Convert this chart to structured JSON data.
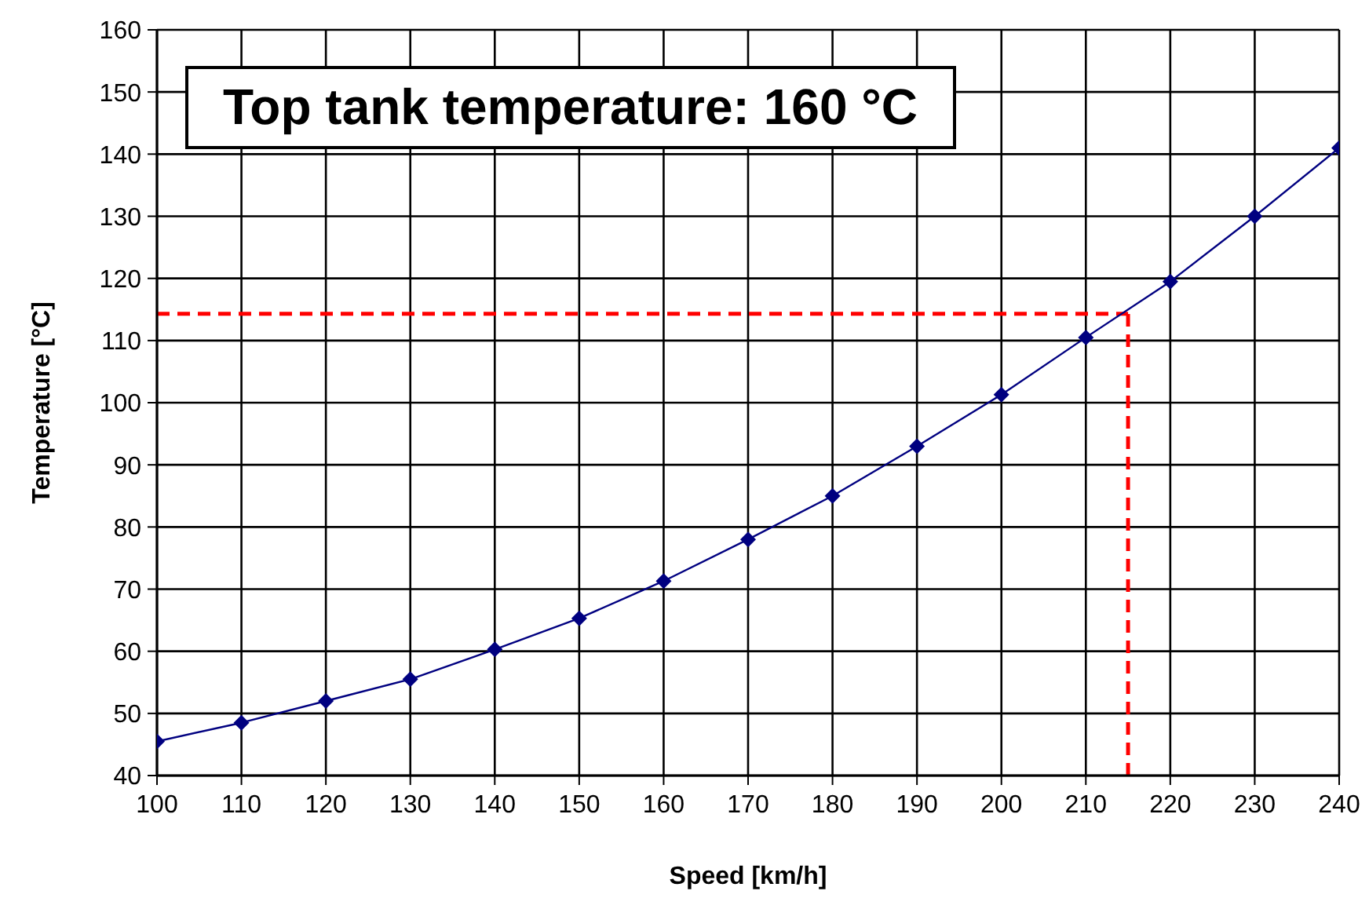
{
  "chart_data": {
    "type": "line",
    "title": "Top tank temperature: 160 °C",
    "xlabel": "Speed [km/h]",
    "ylabel": "Temperature [°C]",
    "x": [
      100,
      110,
      120,
      130,
      140,
      150,
      160,
      170,
      180,
      190,
      200,
      210,
      220,
      230,
      240
    ],
    "series": [
      {
        "color": "#000080",
        "values": [
          45.5,
          48.5,
          52,
          55.5,
          60.3,
          65.3,
          71.3,
          78,
          85,
          93,
          101.3,
          110.5,
          119.5,
          130,
          141
        ]
      }
    ],
    "xlim": [
      100,
      240
    ],
    "xticks": [
      100,
      110,
      120,
      130,
      140,
      150,
      160,
      170,
      180,
      190,
      200,
      210,
      220,
      230,
      240
    ],
    "ylim": [
      40,
      160
    ],
    "yticks": [
      40,
      50,
      60,
      70,
      80,
      90,
      100,
      110,
      120,
      130,
      140,
      150,
      160
    ],
    "ref_lines": [
      {
        "axis": "y",
        "value": 114.3,
        "color": "#ff0000",
        "line_style": "dashed"
      },
      {
        "axis": "x",
        "value": 215,
        "color": "#ff0000",
        "line_style": "dashed"
      }
    ],
    "grid": true,
    "marker": "diamond",
    "line_style": "solid"
  }
}
